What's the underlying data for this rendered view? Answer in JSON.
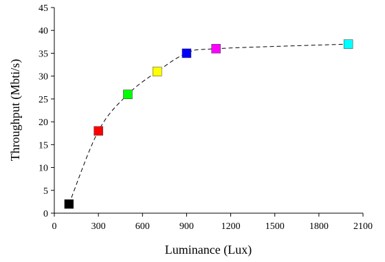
{
  "chart_data": {
    "type": "scatter",
    "xlabel": "Luminance (Lux)",
    "ylabel": "Throughput (Mbti/s)",
    "xlim": [
      0,
      2100
    ],
    "ylim": [
      0,
      45
    ],
    "xticks": [
      0,
      300,
      600,
      900,
      1200,
      1500,
      1800,
      2100
    ],
    "yticks": [
      0,
      5,
      10,
      15,
      20,
      25,
      30,
      35,
      40,
      45
    ],
    "grid": false,
    "legend": "none",
    "connector_line": "dashed",
    "points": [
      {
        "x": 100,
        "y": 2,
        "color": "#000000"
      },
      {
        "x": 300,
        "y": 18,
        "color": "#ff0000"
      },
      {
        "x": 500,
        "y": 26,
        "color": "#00ff00"
      },
      {
        "x": 700,
        "y": 31,
        "color": "#ffff00"
      },
      {
        "x": 900,
        "y": 35,
        "color": "#0000ff"
      },
      {
        "x": 1100,
        "y": 36,
        "color": "#ff00ff"
      },
      {
        "x": 2000,
        "y": 37,
        "color": "#00ffff"
      }
    ]
  }
}
